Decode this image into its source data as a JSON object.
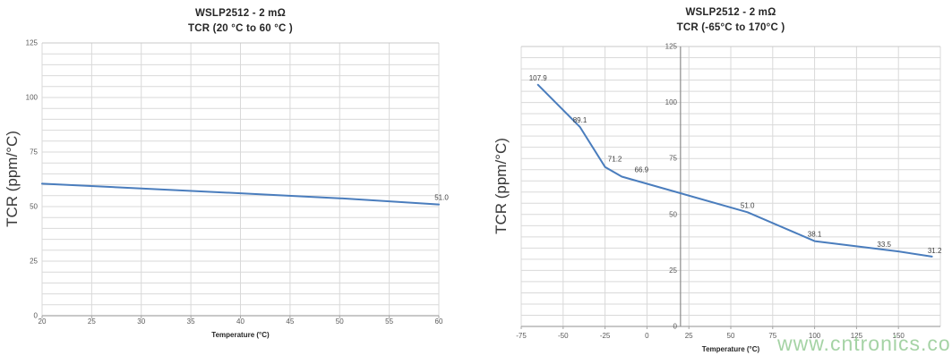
{
  "style": {
    "gridline_color": "#d9d9d9",
    "plot_border_color": "#c9c9c9",
    "axis_line_color": "#a6a6a6",
    "cross_axis_color": "#8c8c8c",
    "tick_label_color": "#595959",
    "data_label_color": "#3f3f3f",
    "title_color": "#262626"
  },
  "watermark": {
    "text": "www.cntronics.com",
    "color": "#9ccf9c"
  },
  "chart_data": [
    {
      "type": "line",
      "title": "WSLP2512 - 2 mΩ",
      "subtitle": "TCR (20 °C to 60 °C )",
      "xlabel": "Temperature (°C)",
      "ylabel": "TCR (ppm/°C)",
      "xlim": [
        20,
        60
      ],
      "ylim": [
        0,
        125
      ],
      "x_ticks": [
        20,
        25,
        30,
        35,
        40,
        45,
        50,
        55,
        60
      ],
      "y_ticks": [
        0,
        25,
        50,
        75,
        100,
        125
      ],
      "x_grid_step": 5,
      "y_minor_step": 5,
      "grid": true,
      "legend": "none",
      "series": [
        {
          "name": "TCR",
          "color": "#4a7dbd",
          "points": [
            {
              "x": 20,
              "y": 60.5
            },
            {
              "x": 30,
              "y": 58.3
            },
            {
              "x": 40,
              "y": 56.1
            },
            {
              "x": 50,
              "y": 53.8
            },
            {
              "x": 60,
              "y": 51.0,
              "label": "51.0",
              "label_offset": [
                3,
                -5
              ]
            }
          ]
        }
      ]
    },
    {
      "type": "line",
      "title": "WSLP2512 - 2 mΩ",
      "subtitle": "TCR (-65°C to 170°C )",
      "xlabel": "Temperature (°C)",
      "ylabel": "TCR (ppm/°C)",
      "xlim": [
        -75,
        175
      ],
      "ylim": [
        0,
        125
      ],
      "x_ticks": [
        -75,
        -50,
        -25,
        0,
        25,
        50,
        75,
        100,
        125,
        150
      ],
      "y_ticks": [
        0,
        25,
        50,
        75,
        100,
        125
      ],
      "x_grid_step": 25,
      "y_minor_step": 5,
      "axis_cross_x": 20,
      "grid": true,
      "legend": "none",
      "series": [
        {
          "name": "TCR",
          "color": "#4a7dbd",
          "points": [
            {
              "x": -65,
              "y": 107.9,
              "label": "107.9"
            },
            {
              "x": -40,
              "y": 89.1,
              "label": "89.1"
            },
            {
              "x": -25,
              "y": 71.2,
              "label": "71.2",
              "label_offset": [
                11,
                -6
              ]
            },
            {
              "x": -15,
              "y": 66.9,
              "label": "66.9",
              "label_offset": [
                22,
                -5
              ]
            },
            {
              "x": 60,
              "y": 51.0,
              "label": "51.0"
            },
            {
              "x": 100,
              "y": 38.1,
              "label": "38.1"
            },
            {
              "x": 150,
              "y": 33.5,
              "label": "33.5",
              "label_offset": [
                -16,
                -5
              ]
            },
            {
              "x": 170,
              "y": 31.2,
              "label": "31.2",
              "label_offset": [
                3,
                -4
              ]
            }
          ]
        }
      ]
    }
  ]
}
